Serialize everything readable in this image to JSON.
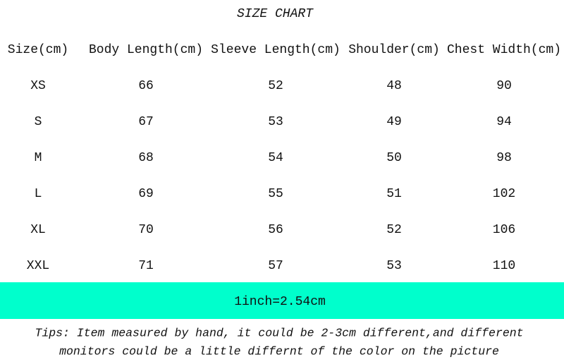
{
  "title": "SIZE CHART",
  "table": {
    "headers": [
      "Size(cm)",
      "Body Length(cm)",
      "Sleeve Length(cm)",
      "Shoulder(cm)",
      "Chest Width(cm)"
    ],
    "rows": [
      [
        "XS",
        "66",
        "52",
        "48",
        "90"
      ],
      [
        "S",
        "67",
        "53",
        "49",
        "94"
      ],
      [
        "M",
        "68",
        "54",
        "50",
        "98"
      ],
      [
        "L",
        "69",
        "55",
        "51",
        "102"
      ],
      [
        "XL",
        "70",
        "56",
        "52",
        "106"
      ],
      [
        "XXL",
        "71",
        "57",
        "53",
        "110"
      ]
    ]
  },
  "conversion": "1inch=2.54cm",
  "tips": [
    "Tips: Item measured by hand, it could be 2-3cm different,and different",
    "monitors could be a little differnt of the color on the picture"
  ],
  "colors": {
    "band": "#00FFCC",
    "text": "#111111"
  }
}
